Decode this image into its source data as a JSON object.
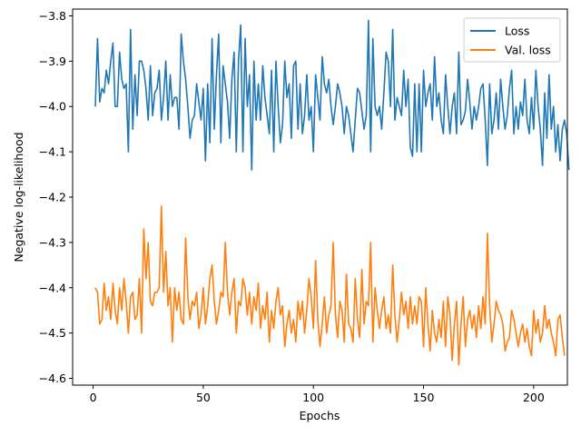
{
  "chart_data": {
    "type": "line",
    "title": "",
    "xlabel": "Epochs",
    "ylabel": "Negative log-likelihood",
    "xlim": [
      -9.3,
      215.3
    ],
    "ylim": [
      -4.615,
      -3.785
    ],
    "xticks": [
      0,
      50,
      100,
      150,
      200
    ],
    "yticks": [
      -3.8,
      -3.9,
      -4.0,
      -4.1,
      -4.2,
      -4.3,
      -4.4,
      -4.5,
      -4.6
    ],
    "xtick_labels": [
      "0",
      "50",
      "100",
      "150",
      "200"
    ],
    "ytick_labels": [
      "−3.8",
      "−3.9",
      "−4.0",
      "−4.1",
      "−4.2",
      "−4.3",
      "−4.4",
      "−4.5",
      "−4.6"
    ],
    "grid": false,
    "legend_position": "top-right",
    "series": [
      {
        "name": "Loss",
        "color": "#1f77b4",
        "x_start": 1,
        "values": [
          -4.0,
          -3.85,
          -3.99,
          -3.96,
          -3.97,
          -3.92,
          -3.95,
          -3.9,
          -3.86,
          -4.0,
          -4.0,
          -3.88,
          -3.94,
          -3.96,
          -3.95,
          -4.1,
          -3.83,
          -4.05,
          -3.93,
          -4.02,
          -3.9,
          -3.9,
          -3.92,
          -3.96,
          -4.03,
          -3.91,
          -4.02,
          -3.97,
          -3.96,
          -3.92,
          -4.03,
          -3.98,
          -3.9,
          -4.03,
          -3.93,
          -4.0,
          -3.98,
          -3.98,
          -4.05,
          -3.84,
          -3.9,
          -3.94,
          -4.0,
          -4.07,
          -4.03,
          -4.02,
          -3.95,
          -3.99,
          -4.03,
          -3.96,
          -4.12,
          -3.95,
          -4.08,
          -3.85,
          -4.05,
          -3.93,
          -3.84,
          -4.08,
          -3.91,
          -3.95,
          -3.99,
          -4.07,
          -3.94,
          -3.88,
          -4.1,
          -3.9,
          -3.82,
          -4.1,
          -3.85,
          -4.0,
          -3.93,
          -4.14,
          -3.9,
          -4.03,
          -3.95,
          -4.03,
          -3.91,
          -3.98,
          -4.02,
          -4.06,
          -3.92,
          -4.1,
          -3.9,
          -4.0,
          -4.08,
          -4.04,
          -3.9,
          -3.98,
          -3.95,
          -4.07,
          -3.91,
          -3.9,
          -4.05,
          -3.95,
          -4.06,
          -4.02,
          -3.93,
          -4.03,
          -4.0,
          -4.1,
          -3.93,
          -3.98,
          -4.03,
          -3.89,
          -3.95,
          -3.97,
          -3.94,
          -4.0,
          -4.04,
          -4.0,
          -3.95,
          -3.97,
          -4.0,
          -4.06,
          -4.0,
          -4.02,
          -4.06,
          -4.1,
          -4.03,
          -3.96,
          -3.97,
          -4.01,
          -4.05,
          -4.02,
          -3.81,
          -4.1,
          -3.85,
          -4.0,
          -4.02,
          -4.0,
          -4.05,
          -3.97,
          -3.88,
          -3.9,
          -4.0,
          -3.83,
          -4.03,
          -3.98,
          -4.0,
          -4.02,
          -3.92,
          -4.0,
          -3.94,
          -4.09,
          -4.11,
          -3.95,
          -4.1,
          -3.95,
          -4.1,
          -3.92,
          -4.0,
          -3.97,
          -3.95,
          -4.03,
          -3.89,
          -4.0,
          -3.97,
          -4.03,
          -4.06,
          -3.93,
          -4.0,
          -4.06,
          -4.0,
          -3.97,
          -4.06,
          -3.88,
          -4.04,
          -4.03,
          -4.01,
          -3.94,
          -3.99,
          -4.05,
          -4.0,
          -4.03,
          -4.0,
          -3.96,
          -3.95,
          -4.03,
          -4.13,
          -3.95,
          -4.06,
          -4.03,
          -3.97,
          -4.05,
          -3.94,
          -4.0,
          -4.05,
          -4.02,
          -3.96,
          -3.92,
          -4.06,
          -4.0,
          -4.05,
          -3.99,
          -4.02,
          -3.94,
          -4.03,
          -4.06,
          -3.98,
          -4.05,
          -3.92,
          -4.0,
          -4.05,
          -4.13,
          -3.97,
          -4.07,
          -3.93,
          -4.05,
          -4.0,
          -4.1,
          -4.04,
          -4.12,
          -4.05,
          -4.03,
          -4.06,
          -4.14
        ]
      },
      {
        "name": "Val. loss",
        "color": "#ff7f0e",
        "x_start": 1,
        "values": [
          -4.4,
          -4.41,
          -4.48,
          -4.47,
          -4.39,
          -4.45,
          -4.42,
          -4.47,
          -4.39,
          -4.45,
          -4.48,
          -4.4,
          -4.45,
          -4.38,
          -4.43,
          -4.5,
          -4.42,
          -4.41,
          -4.47,
          -4.46,
          -4.38,
          -4.5,
          -4.27,
          -4.38,
          -4.3,
          -4.43,
          -4.44,
          -4.41,
          -4.41,
          -4.4,
          -4.22,
          -4.41,
          -4.32,
          -4.44,
          -4.4,
          -4.52,
          -4.4,
          -4.45,
          -4.41,
          -4.47,
          -4.48,
          -4.29,
          -4.42,
          -4.47,
          -4.43,
          -4.44,
          -4.41,
          -4.49,
          -4.46,
          -4.4,
          -4.48,
          -4.44,
          -4.38,
          -4.35,
          -4.43,
          -4.48,
          -4.45,
          -4.41,
          -4.42,
          -4.3,
          -4.41,
          -4.46,
          -4.41,
          -4.38,
          -4.5,
          -4.43,
          -4.44,
          -4.38,
          -4.4,
          -4.46,
          -4.41,
          -4.48,
          -4.42,
          -4.45,
          -4.39,
          -4.49,
          -4.44,
          -4.47,
          -4.41,
          -4.52,
          -4.45,
          -4.49,
          -4.43,
          -4.4,
          -4.46,
          -4.44,
          -4.53,
          -4.48,
          -4.45,
          -4.5,
          -4.47,
          -4.52,
          -4.43,
          -4.47,
          -4.43,
          -4.5,
          -4.45,
          -4.38,
          -4.42,
          -4.49,
          -4.34,
          -4.47,
          -4.53,
          -4.48,
          -4.42,
          -4.5,
          -4.46,
          -4.44,
          -4.3,
          -4.46,
          -4.51,
          -4.43,
          -4.45,
          -4.52,
          -4.37,
          -4.48,
          -4.49,
          -4.52,
          -4.38,
          -4.47,
          -4.51,
          -4.36,
          -4.48,
          -4.43,
          -4.44,
          -4.3,
          -4.52,
          -4.4,
          -4.45,
          -4.49,
          -4.45,
          -4.42,
          -4.49,
          -4.46,
          -4.5,
          -4.35,
          -4.46,
          -4.52,
          -4.47,
          -4.41,
          -4.46,
          -4.43,
          -4.49,
          -4.42,
          -4.48,
          -4.44,
          -4.48,
          -4.42,
          -4.43,
          -4.53,
          -4.4,
          -4.48,
          -4.54,
          -4.45,
          -4.5,
          -4.52,
          -4.47,
          -4.51,
          -4.43,
          -4.53,
          -4.42,
          -4.46,
          -4.56,
          -4.48,
          -4.43,
          -4.57,
          -4.48,
          -4.42,
          -4.53,
          -4.47,
          -4.45,
          -4.49,
          -4.46,
          -4.51,
          -4.44,
          -4.49,
          -4.42,
          -4.48,
          -4.28,
          -4.44,
          -4.52,
          -4.48,
          -4.43,
          -4.45,
          -4.46,
          -4.48,
          -4.54,
          -4.52,
          -4.51,
          -4.45,
          -4.47,
          -4.5,
          -4.53,
          -4.5,
          -4.48,
          -4.52,
          -4.49,
          -4.53,
          -4.55,
          -4.45,
          -4.5,
          -4.47,
          -4.52,
          -4.5,
          -4.44,
          -4.49,
          -4.47,
          -4.5,
          -4.52,
          -4.55,
          -4.47,
          -4.46,
          -4.51,
          -4.55
        ]
      }
    ]
  }
}
